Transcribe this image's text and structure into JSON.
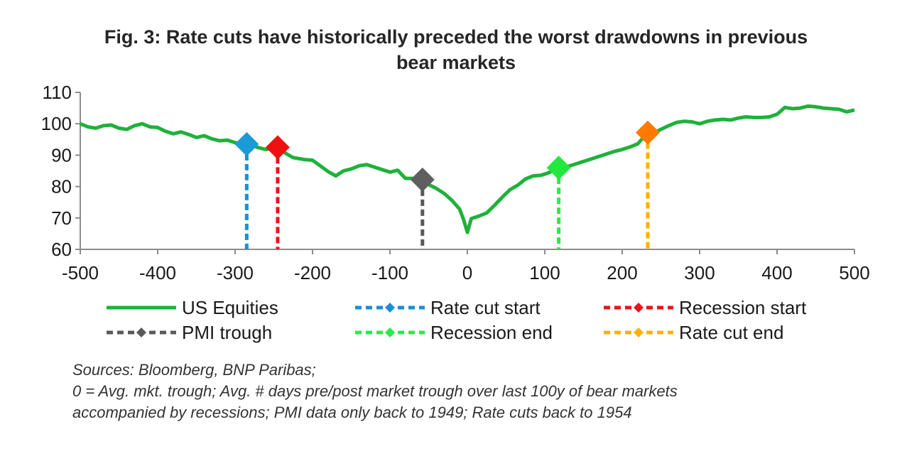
{
  "chart_data": {
    "type": "line",
    "title_lines": [
      "Fig. 3: Rate cuts have historically preceded the worst drawdowns in previous",
      "bear markets"
    ],
    "xlabel": "",
    "ylabel": "",
    "xlim": [
      -500,
      500
    ],
    "ylim": [
      60,
      110
    ],
    "x_ticks": [
      -500,
      -400,
      -300,
      -200,
      -100,
      0,
      100,
      200,
      300,
      400,
      500
    ],
    "y_ticks": [
      60,
      70,
      80,
      90,
      100,
      110
    ],
    "grid": false,
    "legend_position": "bottom",
    "series": [
      {
        "name": "US Equities",
        "color": "#1fb13a",
        "style": "solid",
        "points": [
          [
            -500,
            100
          ],
          [
            -490,
            99
          ],
          [
            -480,
            98.6
          ],
          [
            -470,
            99.4
          ],
          [
            -460,
            99.6
          ],
          [
            -450,
            98.6
          ],
          [
            -440,
            98.2
          ],
          [
            -430,
            99.4
          ],
          [
            -420,
            100
          ],
          [
            -410,
            99
          ],
          [
            -400,
            98.8
          ],
          [
            -390,
            97.6
          ],
          [
            -380,
            96.8
          ],
          [
            -370,
            97.4
          ],
          [
            -360,
            96.6
          ],
          [
            -350,
            95.6
          ],
          [
            -340,
            96.2
          ],
          [
            -330,
            95.2
          ],
          [
            -320,
            94.6
          ],
          [
            -310,
            94.8
          ],
          [
            -300,
            94
          ],
          [
            -290,
            93.4
          ],
          [
            -284,
            93.5
          ],
          [
            -270,
            92.4
          ],
          [
            -260,
            91.8
          ],
          [
            -245,
            92.5
          ],
          [
            -235,
            90.6
          ],
          [
            -225,
            89.2
          ],
          [
            -210,
            88.6
          ],
          [
            -200,
            88.4
          ],
          [
            -190,
            86.6
          ],
          [
            -180,
            84.8
          ],
          [
            -170,
            83.4
          ],
          [
            -160,
            85
          ],
          [
            -150,
            85.6
          ],
          [
            -140,
            86.6
          ],
          [
            -130,
            87
          ],
          [
            -120,
            86.2
          ],
          [
            -110,
            85.4
          ],
          [
            -100,
            84.6
          ],
          [
            -90,
            85.2
          ],
          [
            -80,
            82.6
          ],
          [
            -70,
            82.6
          ],
          [
            -60,
            82.2
          ],
          [
            -50,
            80.6
          ],
          [
            -40,
            79.4
          ],
          [
            -30,
            77.8
          ],
          [
            -20,
            75.6
          ],
          [
            -10,
            72.8
          ],
          [
            -5,
            69.6
          ],
          [
            0,
            65.4
          ],
          [
            5,
            69.8
          ],
          [
            15,
            70.6
          ],
          [
            25,
            71.6
          ],
          [
            35,
            74
          ],
          [
            45,
            76.6
          ],
          [
            55,
            79
          ],
          [
            65,
            80.4
          ],
          [
            75,
            82.4
          ],
          [
            85,
            83.4
          ],
          [
            95,
            83.6
          ],
          [
            105,
            84.4
          ],
          [
            118,
            86
          ],
          [
            130,
            86.4
          ],
          [
            140,
            87.2
          ],
          [
            150,
            88
          ],
          [
            160,
            88.8
          ],
          [
            170,
            89.6
          ],
          [
            180,
            90.4
          ],
          [
            190,
            91.2
          ],
          [
            200,
            91.8
          ],
          [
            210,
            92.6
          ],
          [
            220,
            93.6
          ],
          [
            233,
            97.2
          ],
          [
            245,
            97.6
          ],
          [
            260,
            99.4
          ],
          [
            270,
            100.4
          ],
          [
            280,
            100.8
          ],
          [
            290,
            100.6
          ],
          [
            300,
            100
          ],
          [
            310,
            100.8
          ],
          [
            320,
            101.2
          ],
          [
            330,
            101.4
          ],
          [
            340,
            101.2
          ],
          [
            350,
            101.8
          ],
          [
            360,
            102.2
          ],
          [
            370,
            102
          ],
          [
            380,
            102
          ],
          [
            390,
            102.2
          ],
          [
            400,
            103
          ],
          [
            410,
            105.2
          ],
          [
            420,
            104.8
          ],
          [
            430,
            105
          ],
          [
            440,
            105.6
          ],
          [
            450,
            105.4
          ],
          [
            460,
            105
          ],
          [
            470,
            104.8
          ],
          [
            480,
            104.6
          ],
          [
            490,
            103.8
          ],
          [
            500,
            104.4
          ]
        ]
      },
      {
        "name": "Rate cut start",
        "color": "#1a8fd6",
        "style": "dashed",
        "x": -285,
        "y": 93.5
      },
      {
        "name": "Recession start",
        "color": "#e8141b",
        "style": "dashed",
        "x": -245,
        "y": 92.5
      },
      {
        "name": "PMI trough",
        "color": "#595959",
        "style": "dashed",
        "x": -58,
        "y": 82.2
      },
      {
        "name": "Recession end",
        "color": "#2ee84a",
        "style": "dashed",
        "x": 118,
        "y": 86
      },
      {
        "name": "Rate cut end",
        "color": "#ffb000",
        "style": "dashed",
        "x": 233,
        "y": 97.2
      }
    ],
    "legend": [
      {
        "label": "US Equities",
        "color": "#1fb13a",
        "style": "solid"
      },
      {
        "label": "Rate cut start",
        "color": "#1a8fd6",
        "style": "dashed",
        "marker": "diamond"
      },
      {
        "label": "Recession start",
        "color": "#e8141b",
        "style": "dashed",
        "marker": "diamond"
      },
      {
        "label": "PMI trough",
        "color": "#595959",
        "style": "dashed",
        "marker": "diamond"
      },
      {
        "label": "Recession end",
        "color": "#2ee84a",
        "style": "dashed",
        "marker": "diamond"
      },
      {
        "label": "Rate cut end",
        "color": "#ffb000",
        "style": "dashed",
        "marker": "diamond"
      }
    ],
    "marker_colors": {
      "Rate cut start": "#1a9ad6",
      "Recession start": "#f01010",
      "PMI trough": "#5f5f5f",
      "Recession end": "#22e83e",
      "Rate cut end": "#ff7a00"
    },
    "notes": [
      "Sources: Bloomberg, BNP Paribas;",
      "0 = Avg. mkt. trough; Avg. # days pre/post market trough over last 100y of bear markets",
      "accompanied by recessions; PMI data only back to 1949; Rate cuts back to 1954"
    ]
  }
}
